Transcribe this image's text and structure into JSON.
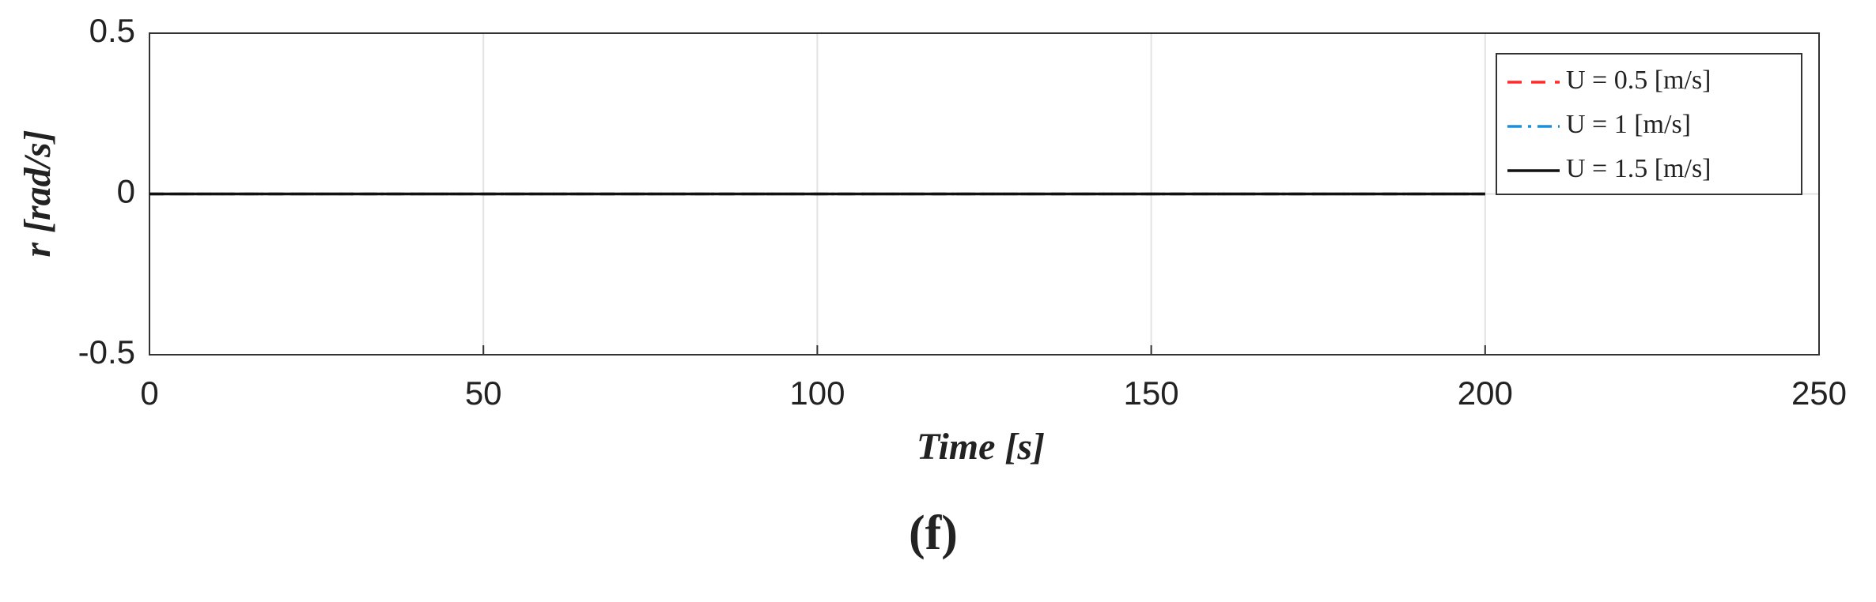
{
  "chart_data": {
    "type": "line",
    "xlabel": "Time  [s]",
    "ylabel": "r  [rad/s]",
    "caption": "(f)",
    "x": [
      0,
      200
    ],
    "series": [
      {
        "name": "U = 0.5 [m/s]",
        "color": "#ff2a2a",
        "dash": "dashed",
        "values": [
          0,
          0
        ]
      },
      {
        "name": "U = 1    [m/s]",
        "color": "#1e90d8",
        "dash": "dashdot",
        "values": [
          0,
          0
        ]
      },
      {
        "name": "U = 1.5 [m/s]",
        "color": "#111111",
        "dash": "solid",
        "values": [
          0,
          0
        ]
      }
    ],
    "xlim": [
      0,
      250
    ],
    "xticks": [
      0,
      50,
      100,
      150,
      200,
      250
    ],
    "ylim": [
      -0.5,
      0.5
    ],
    "yticks": [
      -0.5,
      0,
      0.5
    ],
    "grid": true,
    "legend": "upper right"
  }
}
